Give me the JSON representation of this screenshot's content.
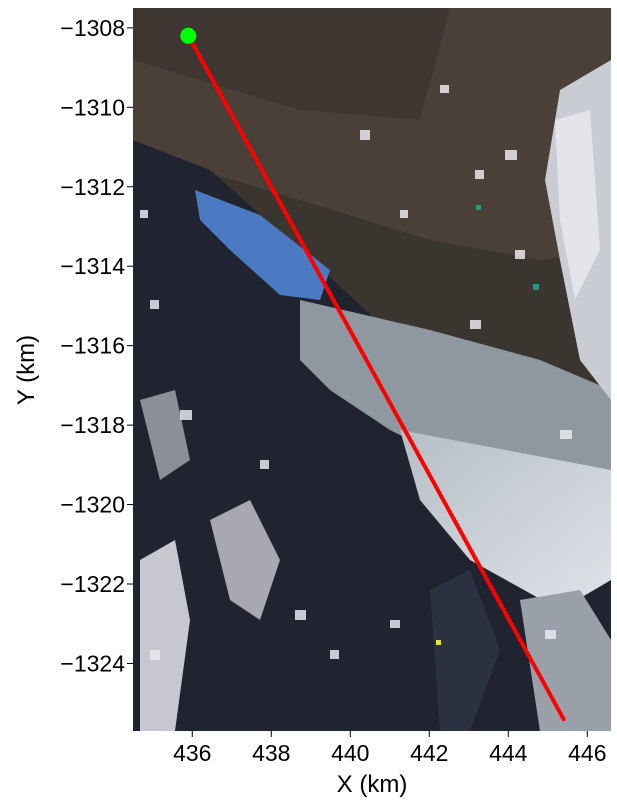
{
  "chart_data": {
    "type": "scatter",
    "title": "",
    "xlabel": "X (km)",
    "ylabel": "Y (km)",
    "xlim": [
      434.5,
      446.6
    ],
    "ylim": [
      -1325.7,
      -1307.5
    ],
    "xticks": [
      436,
      438,
      440,
      442,
      444,
      446
    ],
    "yticks": [
      -1308,
      -1310,
      -1312,
      -1314,
      -1316,
      -1318,
      -1320,
      -1322,
      -1324
    ],
    "xtick_labels": [
      "436",
      "438",
      "440",
      "442",
      "444",
      "446"
    ],
    "ytick_labels": [
      "−1308",
      "−1310",
      "−1312",
      "−1314",
      "−1316",
      "−1318",
      "−1320",
      "−1322",
      "−1324"
    ],
    "background": "satellite imagery (true-color raster)",
    "grid": false,
    "legend": "none",
    "series": [
      {
        "marker": "line",
        "color": "#ff0000",
        "x": [
          435.9,
          445.4
        ],
        "y": [
          -1308.2,
          -1325.4
        ]
      },
      {
        "marker": "point",
        "color": "#00ff00",
        "x": [
          435.9
        ],
        "y": [
          -1308.2
        ]
      }
    ]
  }
}
